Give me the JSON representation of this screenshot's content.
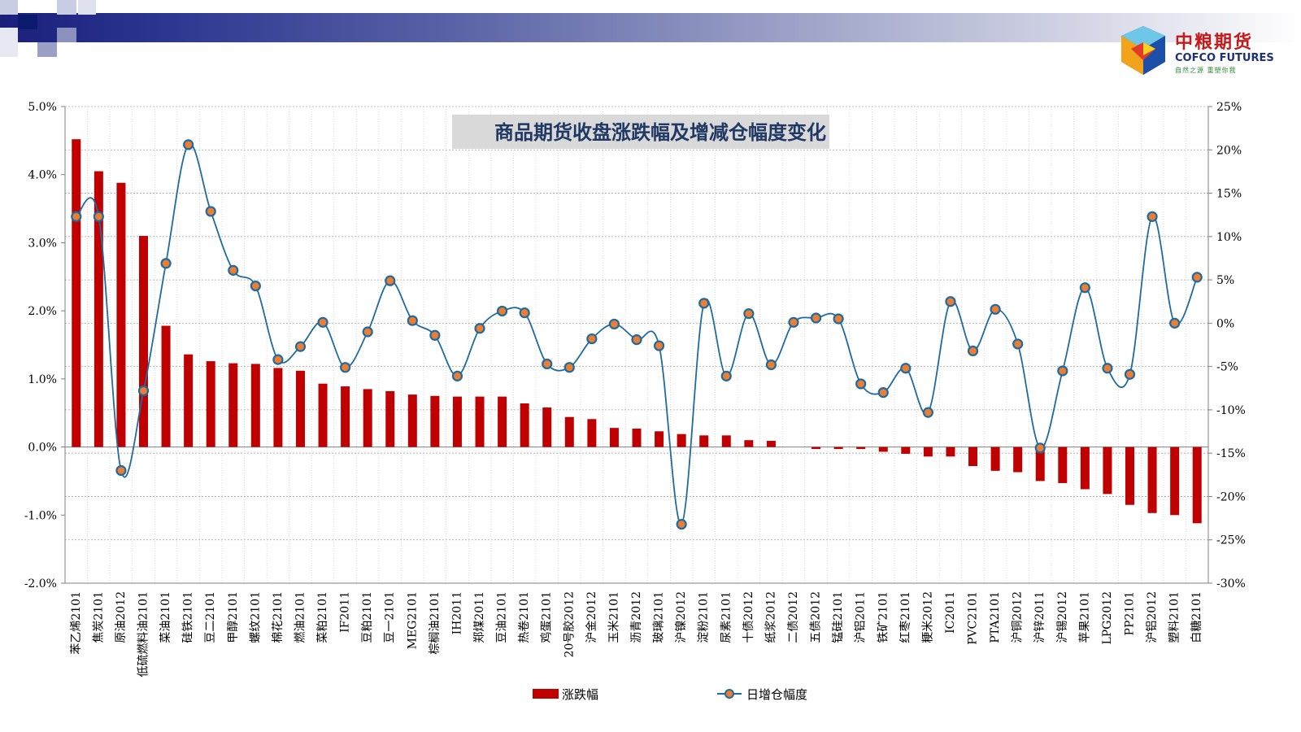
{
  "branding": {
    "name_cn": "中粮期货",
    "name_en": "COFCO FUTURES",
    "slogan": "自然之源 重塑你我"
  },
  "colors": {
    "bar": "#c00000",
    "line": "#1f6aa0",
    "marker_fill": "#ed7d31",
    "title_bg": "#d9d9d9",
    "title_text": "#1f3864"
  },
  "chart_data": {
    "type": "bar",
    "title": "商品期货收盘涨跌幅及增减仓幅度变化",
    "categories": [
      "苯乙烯2101",
      "焦炭2101",
      "原油2012",
      "低硫燃料油2101",
      "菜油2101",
      "硅铁2101",
      "豆二2101",
      "甲醇2101",
      "螺纹2101",
      "棉花2101",
      "燃油2101",
      "菜粕2101",
      "IF2011",
      "豆粕2101",
      "豆一2101",
      "MEG2101",
      "棕榈油2101",
      "IH2011",
      "郑煤2011",
      "豆油2101",
      "热卷2101",
      "鸡蛋2101",
      "20号胶2012",
      "沪金2012",
      "玉米2101",
      "沥青2012",
      "玻璃2101",
      "沪镍2012",
      "淀粉2101",
      "尿素2101",
      "十债2012",
      "纸浆2012",
      "二债2012",
      "五债2012",
      "锰硅2101",
      "沪铝2011",
      "铁矿2101",
      "红枣2101",
      "粳米2012",
      "IC2011",
      "PVC2101",
      "PTA2101",
      "沪铜2012",
      "沪锌2011",
      "沪锡2012",
      "苹果2101",
      "LPG2012",
      "PP2101",
      "沪铝2012",
      "塑料2101",
      "白糖2101"
    ],
    "series": [
      {
        "name": "涨跌幅",
        "type": "bar",
        "axis": "left",
        "values": [
          4.52,
          4.05,
          3.88,
          3.1,
          1.78,
          1.36,
          1.26,
          1.23,
          1.22,
          1.16,
          1.12,
          0.93,
          0.89,
          0.85,
          0.82,
          0.77,
          0.75,
          0.74,
          0.74,
          0.74,
          0.64,
          0.58,
          0.44,
          0.41,
          0.28,
          0.27,
          0.23,
          0.19,
          0.17,
          0.17,
          0.1,
          0.09,
          0.0,
          -0.03,
          -0.03,
          -0.03,
          -0.07,
          -0.1,
          -0.14,
          -0.14,
          -0.28,
          -0.35,
          -0.37,
          -0.5,
          -0.53,
          -0.62,
          -0.69,
          -0.85,
          -0.97,
          -1.0,
          -1.12
        ]
      },
      {
        "name": "日增仓幅度",
        "type": "line",
        "axis": "right",
        "values": [
          12.3,
          12.3,
          -17.0,
          -7.8,
          6.9,
          20.6,
          12.9,
          6.1,
          4.3,
          -4.2,
          -2.7,
          0.1,
          -5.1,
          -1.0,
          4.9,
          0.3,
          -1.4,
          -6.1,
          -0.6,
          1.4,
          1.2,
          -4.7,
          -5.1,
          -1.8,
          -0.1,
          -1.9,
          -2.6,
          -23.2,
          2.3,
          -6.1,
          1.1,
          -4.8,
          0.1,
          0.6,
          0.5,
          -7.0,
          -8.0,
          -5.2,
          -10.3,
          2.5,
          -3.2,
          1.6,
          -2.4,
          -14.4,
          -5.5,
          4.1,
          -5.2,
          -5.9,
          12.3,
          0.0,
          5.3
        ]
      }
    ],
    "y_left": {
      "min": -2.0,
      "max": 5.0,
      "ticks": [
        "-2.0%",
        "-1.0%",
        "0.0%",
        "1.0%",
        "2.0%",
        "3.0%",
        "4.0%",
        "5.0%"
      ]
    },
    "y_right": {
      "min": -30,
      "max": 25,
      "ticks": [
        "-30%",
        "-25%",
        "-20%",
        "-15%",
        "-10%",
        "-5%",
        "0%",
        "5%",
        "10%",
        "15%",
        "20%",
        "25%"
      ]
    },
    "grid": true,
    "legend_position": "bottom"
  }
}
